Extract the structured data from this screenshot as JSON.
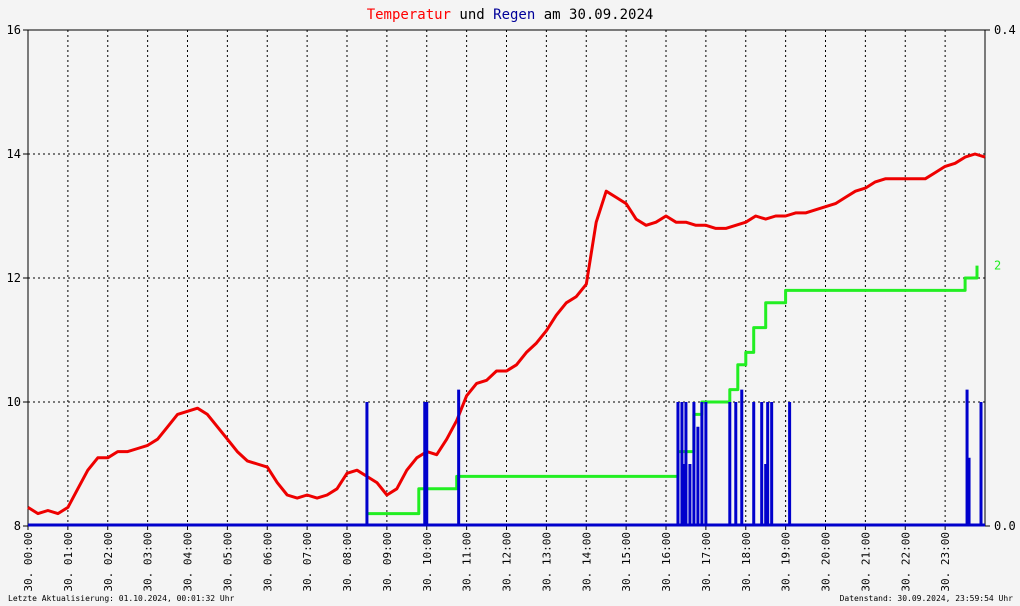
{
  "title": {
    "part1": "Temperatur",
    "part2": " und ",
    "part3": "Regen",
    "part4": " am 30.09.2024",
    "colors": {
      "part1": "#ff0000",
      "part2": "#000000",
      "part3": "#000099",
      "part4": "#000000"
    }
  },
  "footer": {
    "left": "Letzte Aktualisierung: 01.10.2024, 00:01:32 Uhr",
    "right": "Datenstand: 30.09.2024, 23:59:54 Uhr"
  },
  "colors": {
    "temperature": "#ee0000",
    "rain_cumulative": "#22ee22",
    "rain_rate": "#0000cc",
    "grid": "#000000"
  },
  "chart_data": {
    "type": "line",
    "x_unit": "hours",
    "xlim": [
      0,
      24
    ],
    "x_tick_labels": [
      "30. 00:00",
      "30. 01:00",
      "30. 02:00",
      "30. 03:00",
      "30. 04:00",
      "30. 05:00",
      "30. 06:00",
      "30. 07:00",
      "30. 08:00",
      "30. 09:00",
      "30. 10:00",
      "30. 11:00",
      "30. 12:00",
      "30. 13:00",
      "30. 14:00",
      "30. 15:00",
      "30. 16:00",
      "30. 17:00",
      "30. 18:00",
      "30. 19:00",
      "30. 20:00",
      "30. 21:00",
      "30. 22:00",
      "30. 23:00"
    ],
    "y_left": {
      "lim": [
        8,
        16
      ],
      "ticks": [
        "8",
        "10",
        "12",
        "14",
        "16"
      ]
    },
    "y_right": {
      "lim": [
        0,
        0.4
      ],
      "ticks": [
        "0.0",
        "0.4"
      ]
    },
    "end_label": "2",
    "grid": true,
    "series": [
      {
        "key": "temperature",
        "axis": "left",
        "points": [
          [
            0,
            8.3
          ],
          [
            0.25,
            8.2
          ],
          [
            0.5,
            8.25
          ],
          [
            0.75,
            8.2
          ],
          [
            1.0,
            8.3
          ],
          [
            1.25,
            8.6
          ],
          [
            1.5,
            8.9
          ],
          [
            1.75,
            9.1
          ],
          [
            2.0,
            9.1
          ],
          [
            2.25,
            9.2
          ],
          [
            2.5,
            9.2
          ],
          [
            2.75,
            9.25
          ],
          [
            3.0,
            9.3
          ],
          [
            3.25,
            9.4
          ],
          [
            3.5,
            9.6
          ],
          [
            3.75,
            9.8
          ],
          [
            4.0,
            9.85
          ],
          [
            4.25,
            9.9
          ],
          [
            4.5,
            9.8
          ],
          [
            4.75,
            9.6
          ],
          [
            5.0,
            9.4
          ],
          [
            5.25,
            9.2
          ],
          [
            5.5,
            9.05
          ],
          [
            5.75,
            9.0
          ],
          [
            6.0,
            8.95
          ],
          [
            6.25,
            8.7
          ],
          [
            6.5,
            8.5
          ],
          [
            6.75,
            8.45
          ],
          [
            7.0,
            8.5
          ],
          [
            7.25,
            8.45
          ],
          [
            7.5,
            8.5
          ],
          [
            7.75,
            8.6
          ],
          [
            8.0,
            8.85
          ],
          [
            8.25,
            8.9
          ],
          [
            8.5,
            8.8
          ],
          [
            8.75,
            8.7
          ],
          [
            9.0,
            8.5
          ],
          [
            9.25,
            8.6
          ],
          [
            9.5,
            8.9
          ],
          [
            9.75,
            9.1
          ],
          [
            10.0,
            9.2
          ],
          [
            10.25,
            9.15
          ],
          [
            10.5,
            9.4
          ],
          [
            10.75,
            9.7
          ],
          [
            11.0,
            10.1
          ],
          [
            11.25,
            10.3
          ],
          [
            11.5,
            10.35
          ],
          [
            11.75,
            10.5
          ],
          [
            12.0,
            10.5
          ],
          [
            12.25,
            10.6
          ],
          [
            12.5,
            10.8
          ],
          [
            12.75,
            10.95
          ],
          [
            13.0,
            11.15
          ],
          [
            13.25,
            11.4
          ],
          [
            13.5,
            11.6
          ],
          [
            13.75,
            11.7
          ],
          [
            14.0,
            11.9
          ],
          [
            14.25,
            12.9
          ],
          [
            14.5,
            13.4
          ],
          [
            14.75,
            13.3
          ],
          [
            15.0,
            13.2
          ],
          [
            15.25,
            12.95
          ],
          [
            15.5,
            12.85
          ],
          [
            15.75,
            12.9
          ],
          [
            16.0,
            13.0
          ],
          [
            16.25,
            12.9
          ],
          [
            16.5,
            12.9
          ],
          [
            16.75,
            12.85
          ],
          [
            17.0,
            12.85
          ],
          [
            17.25,
            12.8
          ],
          [
            17.5,
            12.8
          ],
          [
            17.75,
            12.85
          ],
          [
            18.0,
            12.9
          ],
          [
            18.25,
            13.0
          ],
          [
            18.5,
            12.95
          ],
          [
            18.75,
            13.0
          ],
          [
            19.0,
            13.0
          ],
          [
            19.25,
            13.05
          ],
          [
            19.5,
            13.05
          ],
          [
            19.75,
            13.1
          ],
          [
            20.0,
            13.15
          ],
          [
            20.25,
            13.2
          ],
          [
            20.5,
            13.3
          ],
          [
            20.75,
            13.4
          ],
          [
            21.0,
            13.45
          ],
          [
            21.25,
            13.55
          ],
          [
            21.5,
            13.6
          ],
          [
            21.75,
            13.6
          ],
          [
            22.0,
            13.6
          ],
          [
            22.25,
            13.6
          ],
          [
            22.5,
            13.6
          ],
          [
            22.75,
            13.7
          ],
          [
            23.0,
            13.8
          ],
          [
            23.25,
            13.85
          ],
          [
            23.5,
            13.95
          ],
          [
            23.75,
            14.0
          ],
          [
            24.0,
            13.95
          ]
        ]
      },
      {
        "key": "rain_cumulative",
        "axis": "right",
        "points": [
          [
            8.5,
            0.01
          ],
          [
            9.8,
            0.01
          ],
          [
            9.8,
            0.03
          ],
          [
            10.75,
            0.03
          ],
          [
            10.75,
            0.04
          ],
          [
            16.2,
            0.04
          ],
          [
            16.3,
            0.04
          ],
          [
            16.3,
            0.06
          ],
          [
            16.7,
            0.06
          ],
          [
            16.7,
            0.09
          ],
          [
            16.9,
            0.09
          ],
          [
            16.9,
            0.1
          ],
          [
            17.6,
            0.1
          ],
          [
            17.6,
            0.11
          ],
          [
            17.8,
            0.11
          ],
          [
            17.8,
            0.13
          ],
          [
            18.0,
            0.13
          ],
          [
            18.0,
            0.14
          ],
          [
            18.2,
            0.14
          ],
          [
            18.2,
            0.16
          ],
          [
            18.5,
            0.16
          ],
          [
            18.5,
            0.18
          ],
          [
            19.0,
            0.18
          ],
          [
            19.0,
            0.19
          ],
          [
            23.5,
            0.19
          ],
          [
            23.5,
            0.2
          ],
          [
            23.8,
            0.2
          ],
          [
            23.8,
            0.21
          ]
        ]
      },
      {
        "key": "rain_rate",
        "axis": "right",
        "points": [
          [
            8.5,
            0.1
          ],
          [
            9.95,
            0.1
          ],
          [
            10.0,
            0.1
          ],
          [
            10.8,
            0.11
          ],
          [
            16.3,
            0.1
          ],
          [
            16.4,
            0.1
          ],
          [
            16.45,
            0.05
          ],
          [
            16.5,
            0.1
          ],
          [
            16.6,
            0.05
          ],
          [
            16.7,
            0.1
          ],
          [
            16.8,
            0.08
          ],
          [
            16.9,
            0.1
          ],
          [
            17.0,
            0.1
          ],
          [
            17.6,
            0.1
          ],
          [
            17.75,
            0.1
          ],
          [
            17.9,
            0.11
          ],
          [
            18.2,
            0.1
          ],
          [
            18.4,
            0.1
          ],
          [
            18.5,
            0.05
          ],
          [
            18.55,
            0.1
          ],
          [
            18.65,
            0.1
          ],
          [
            19.1,
            0.1
          ],
          [
            23.55,
            0.11
          ],
          [
            23.6,
            0.055
          ],
          [
            23.9,
            0.1
          ]
        ]
      }
    ]
  }
}
